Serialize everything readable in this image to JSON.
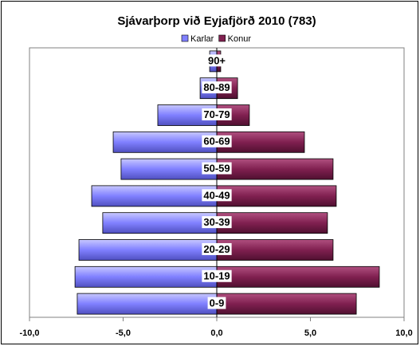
{
  "chart_data": {
    "type": "bar",
    "orientation": "horizontal",
    "title": "Sjávarþorp við Eyjafjörð 2010 (783)",
    "categories": [
      "0-9",
      "10-19",
      "20-29",
      "30-39",
      "40-49",
      "50-59",
      "60-69",
      "70-79",
      "80-89",
      "90+"
    ],
    "series": [
      {
        "name": "Karlar",
        "color": "#8080ff",
        "values": [
          -7.45,
          -7.57,
          -7.36,
          -6.09,
          -6.68,
          -5.11,
          -5.53,
          -3.15,
          -0.89,
          -0.38
        ]
      },
      {
        "name": "Konur",
        "color": "#802050",
        "values": [
          7.45,
          8.68,
          6.21,
          5.91,
          6.38,
          6.21,
          4.68,
          1.74,
          1.11,
          0.21
        ]
      }
    ],
    "xlim": [
      -10,
      10
    ],
    "xticks": [
      {
        "value": -10,
        "label": "-10,0"
      },
      {
        "value": -5,
        "label": "-5,0"
      },
      {
        "value": 0,
        "label": "0,0"
      },
      {
        "value": 5,
        "label": "5,0"
      },
      {
        "value": 10,
        "label": "10,0"
      }
    ],
    "legend": "top"
  }
}
